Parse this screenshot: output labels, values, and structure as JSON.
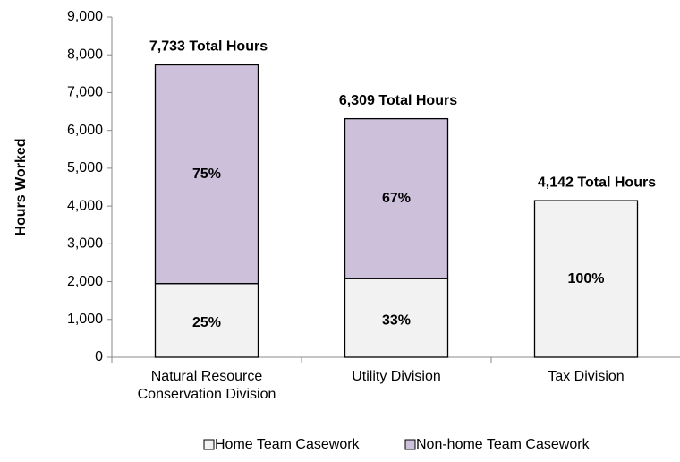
{
  "chart_data": {
    "type": "stacked_bar",
    "y_label": "Hours Worked",
    "categories": [
      "Natural Resource Conservation Division",
      "Utility Division",
      "Tax Division"
    ],
    "series": [
      {
        "name": "Home Team Casework",
        "color": "#f2f2f2",
        "values": [
          1950,
          2080,
          4142
        ],
        "labels": [
          "25%",
          "33%",
          "100%"
        ]
      },
      {
        "name": "Non-home Team Casework",
        "color": "#ccc0da",
        "values": [
          5783,
          4229,
          0
        ],
        "labels": [
          "75%",
          "67%",
          null
        ]
      }
    ],
    "total_labels": [
      "7,733 Total Hours",
      "6,309 Total Hours",
      "4,142 Total Hours"
    ],
    "ylim": [
      0,
      9000
    ],
    "yticks": [
      0,
      {
        "value": 1000,
        "label": "1,000"
      },
      {
        "value": 2000,
        "label": "2,000"
      },
      {
        "value": 3000,
        "label": "3,000"
      },
      {
        "value": 4000,
        "label": "4,000"
      },
      {
        "value": 5000,
        "label": "5,000"
      },
      {
        "value": 6000,
        "label": "6,000"
      },
      {
        "value": 7000,
        "label": "7,000"
      },
      {
        "value": 8000,
        "label": "8,000"
      },
      {
        "value": 9000,
        "label": "9,000"
      }
    ],
    "grid": false,
    "legend": "bottom"
  }
}
